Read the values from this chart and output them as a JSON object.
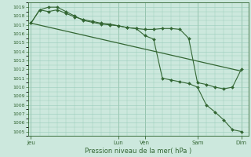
{
  "title": "Pression niveau de la mer( hPa )",
  "background_color": "#cce8dd",
  "grid_color": "#99ccbb",
  "line_color": "#336633",
  "text_color": "#336633",
  "ylim": [
    1004.5,
    1019.5
  ],
  "yticks": [
    1005,
    1006,
    1007,
    1008,
    1009,
    1010,
    1011,
    1012,
    1013,
    1014,
    1015,
    1016,
    1017,
    1018,
    1019
  ],
  "xtick_labels": [
    "Jeu",
    "Lun",
    "Ven",
    "Sam",
    "Dim"
  ],
  "xtick_positions": [
    0,
    10,
    13,
    19,
    24
  ],
  "line1_x": [
    0,
    1,
    2,
    3,
    4,
    5,
    6,
    7,
    8,
    9,
    10,
    11,
    12,
    13,
    14,
    15,
    16,
    17,
    18,
    19,
    20,
    21,
    22,
    23,
    24
  ],
  "line1_y": [
    1017.2,
    1018.7,
    1018.5,
    1018.7,
    1018.3,
    1017.9,
    1017.6,
    1017.4,
    1017.2,
    1017.1,
    1016.9,
    1016.7,
    1016.6,
    1016.5,
    1016.5,
    1016.6,
    1016.6,
    1016.5,
    1015.5,
    1010.5,
    1010.3,
    1010.0,
    1009.8,
    1010.0,
    1012.0
  ],
  "line2_x": [
    0,
    1,
    2,
    3,
    4,
    5,
    6,
    7,
    8,
    9,
    10,
    11,
    12,
    13,
    14,
    15,
    16,
    17,
    18,
    19,
    20,
    21,
    22,
    23,
    24
  ],
  "line2_y": [
    1017.2,
    1018.7,
    1019.0,
    1019.0,
    1018.5,
    1018.0,
    1017.5,
    1017.3,
    1017.1,
    1017.0,
    1016.9,
    1016.7,
    1016.6,
    1015.8,
    1015.4,
    1011.0,
    1010.8,
    1010.6,
    1010.4,
    1010.0,
    1008.0,
    1007.2,
    1006.3,
    1005.2,
    1005.0
  ],
  "line3_x": [
    0,
    24
  ],
  "line3_y": [
    1017.2,
    1011.8
  ],
  "xlim": [
    -0.3,
    24.8
  ]
}
